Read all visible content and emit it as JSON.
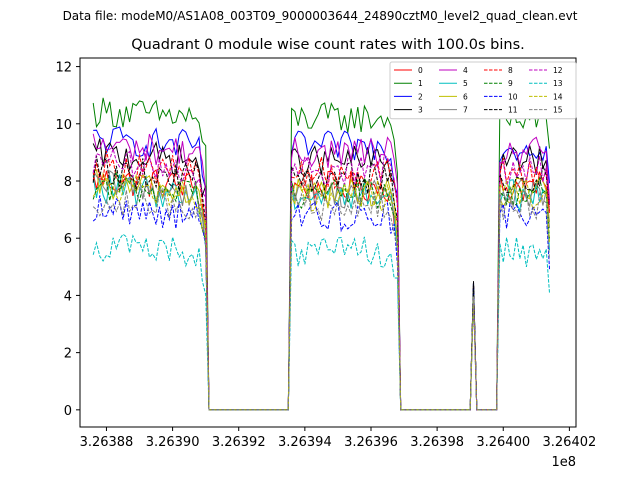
{
  "suptitle": "Data file: modeM0/AS1A08_003T09_9000003644_24890cztM0_level2_quad_clean.evt",
  "chart_data": {
    "type": "line",
    "title": "Quadrant 0 module wise count rates with 100.0s bins.",
    "xlabel": "",
    "ylabel": "",
    "x_offset_label": "1e8",
    "xlim": [
      3.263872,
      3.264022
    ],
    "ylim": [
      -0.6,
      12.3
    ],
    "x_tick_values": [
      3.26388,
      3.2639,
      3.26392,
      3.26394,
      3.26396,
      3.26398,
      3.264,
      3.26402
    ],
    "x_tick_labels": [
      "3.26388",
      "3.26390",
      "3.26392",
      "3.26394",
      "3.26396",
      "3.26398",
      "3.26400",
      "3.26402"
    ],
    "y_tick_values": [
      0,
      2,
      4,
      6,
      8,
      10,
      12
    ],
    "y_tick_labels": [
      "0",
      "2",
      "4",
      "6",
      "8",
      "10",
      "12"
    ],
    "grid": false,
    "legend_position": "top-right",
    "legend_columns": 4,
    "segments_x": [
      {
        "start": 3.263876,
        "end": 3.26391,
        "role": "active"
      },
      {
        "start": 3.263911,
        "end": 3.263935,
        "role": "zero"
      },
      {
        "start": 3.263936,
        "end": 3.263968,
        "role": "active"
      },
      {
        "start": 3.263969,
        "end": 3.26399,
        "role": "zero"
      },
      {
        "start": 3.263991,
        "end": 3.263991,
        "role": "spike"
      },
      {
        "start": 3.263992,
        "end": 3.263998,
        "role": "zero"
      },
      {
        "start": 3.263999,
        "end": 3.264014,
        "role": "active"
      }
    ],
    "spike_value": 4.2,
    "series": [
      {
        "name": "0",
        "color": "#ff0000",
        "dash": "solid",
        "level": 7.8
      },
      {
        "name": "1",
        "color": "#008000",
        "dash": "solid",
        "level": 10.2
      },
      {
        "name": "2",
        "color": "#0000ff",
        "dash": "solid",
        "level": 9.2
      },
      {
        "name": "3",
        "color": "#000000",
        "dash": "solid",
        "level": 8.7
      },
      {
        "name": "4",
        "color": "#bf00bf",
        "dash": "solid",
        "level": 9.0
      },
      {
        "name": "5",
        "color": "#00bfbf",
        "dash": "solid",
        "level": 7.5
      },
      {
        "name": "6",
        "color": "#bfbf00",
        "dash": "solid",
        "level": 7.6
      },
      {
        "name": "7",
        "color": "#808080",
        "dash": "solid",
        "level": 7.6
      },
      {
        "name": "8",
        "color": "#ff0000",
        "dash": "dashed",
        "level": 8.3
      },
      {
        "name": "9",
        "color": "#008000",
        "dash": "dashed",
        "level": 7.6
      },
      {
        "name": "10",
        "color": "#0000ff",
        "dash": "dashed",
        "level": 6.8
      },
      {
        "name": "11",
        "color": "#000000",
        "dash": "dashed",
        "level": 8.1
      },
      {
        "name": "12",
        "color": "#bf00bf",
        "dash": "dashed",
        "level": 8.4
      },
      {
        "name": "13",
        "color": "#00bfbf",
        "dash": "dashed",
        "level": 5.5
      },
      {
        "name": "14",
        "color": "#bfbf00",
        "dash": "dashed",
        "level": 7.5
      },
      {
        "name": "15",
        "color": "#808080",
        "dash": "dashed",
        "level": 7.1
      }
    ]
  }
}
